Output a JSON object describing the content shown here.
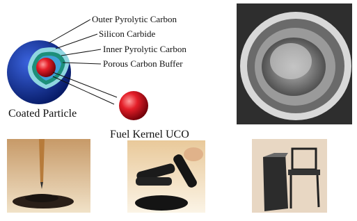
{
  "diagram": {
    "layer_labels": [
      "Outer Pyrolytic Carbon",
      "Silicon Carbide",
      "Inner Pyrolytic Carbon",
      "Porous Carbon Buffer"
    ],
    "coated_particle_label": "Coated Particle",
    "fuel_kernel_label": "Fuel Kernel UCO"
  }
}
